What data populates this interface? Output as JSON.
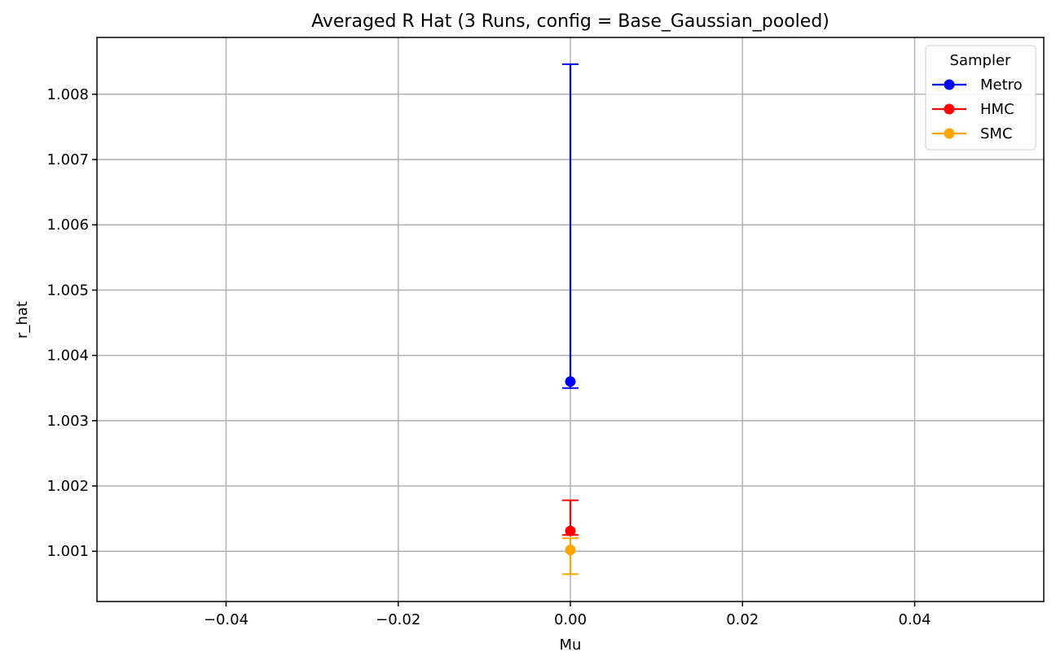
{
  "chart_data": {
    "type": "scatter",
    "title": "Averaged R Hat (3 Runs, config = Base_Gaussian_pooled)",
    "xlabel": "Mu",
    "ylabel": "r_hat",
    "xlim": [
      -0.055,
      0.055
    ],
    "ylim": [
      1.00023,
      1.00887
    ],
    "x_ticks": [
      -0.04,
      -0.02,
      0.0,
      0.02,
      0.04
    ],
    "x_tick_labels": [
      "−0.04",
      "−0.02",
      "0.00",
      "0.02",
      "0.04"
    ],
    "y_ticks": [
      1.001,
      1.002,
      1.003,
      1.004,
      1.005,
      1.006,
      1.007,
      1.008
    ],
    "y_tick_labels": [
      "1.001",
      "1.002",
      "1.003",
      "1.004",
      "1.005",
      "1.006",
      "1.007",
      "1.008"
    ],
    "grid": true,
    "legend": {
      "title": "Sampler",
      "position": "top-right"
    },
    "series": [
      {
        "name": "Metro",
        "color": "#0000ff",
        "x": [
          0.0
        ],
        "y": [
          1.0036
        ],
        "err_low": [
          1.0035
        ],
        "err_high": [
          1.00846
        ]
      },
      {
        "name": "HMC",
        "color": "#ff0000",
        "x": [
          0.0
        ],
        "y": [
          1.00131
        ],
        "err_low": [
          1.00125
        ],
        "err_high": [
          1.00178
        ]
      },
      {
        "name": "SMC",
        "color": "#ffa500",
        "x": [
          0.0
        ],
        "y": [
          1.00102
        ],
        "err_low": [
          1.00065
        ],
        "err_high": [
          1.0012
        ]
      }
    ]
  }
}
